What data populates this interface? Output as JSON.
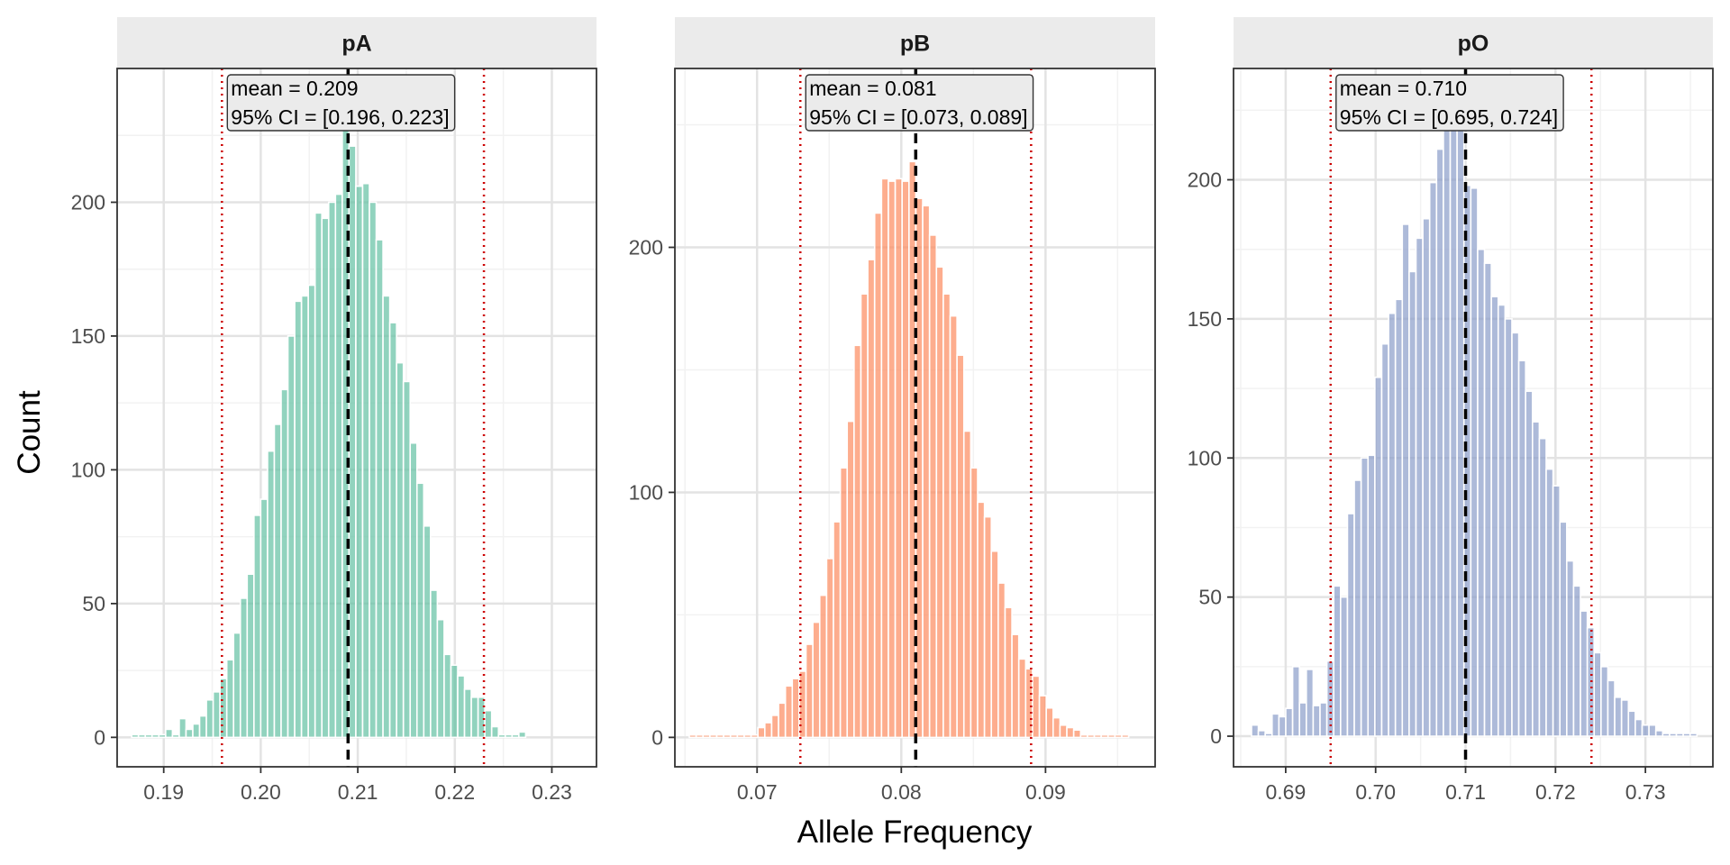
{
  "chart_data": {
    "type": "bar",
    "layout": "facet-row",
    "ylabel": "Count",
    "xlabel": "Allele Frequency",
    "colors": {
      "pA": "#66C2A5",
      "pB": "#FC8D62",
      "pO": "#8DA0CB",
      "mean_line": "#000000",
      "ci_line": "#CC0000"
    },
    "panels": [
      {
        "title": "pA",
        "xlim": [
          0.1852,
          0.2346
        ],
        "ylim": [
          -11,
          250
        ],
        "x_ticks": [
          0.19,
          0.2,
          0.21,
          0.22,
          0.23
        ],
        "x_tick_labels": [
          "0.19",
          "0.20",
          "0.21",
          "0.22",
          "0.23"
        ],
        "y_ticks": [
          0,
          50,
          100,
          150,
          200
        ],
        "y_tick_labels": [
          "0",
          "50",
          "100",
          "150",
          "200"
        ],
        "bin_start": 0.1867,
        "bin_width": 0.0007,
        "counts": [
          1,
          1,
          1,
          1,
          1,
          3,
          1,
          7,
          3,
          5,
          8,
          14,
          17,
          22,
          29,
          39,
          52,
          61,
          83,
          89,
          107,
          117,
          130,
          150,
          163,
          165,
          169,
          196,
          194,
          200,
          203,
          229,
          221,
          206,
          207,
          200,
          186,
          165,
          155,
          140,
          133,
          110,
          95,
          79,
          55,
          44,
          31,
          27,
          23,
          18,
          15,
          15,
          10,
          4,
          1,
          1,
          1,
          2
        ],
        "mean": 0.209,
        "ci": [
          0.196,
          0.223
        ],
        "annotation": {
          "mean_text": "mean = 0.209",
          "ci_text": "95% CI = [0.196, 0.223]"
        }
      },
      {
        "title": "pB",
        "xlim": [
          0.0643,
          0.0976
        ],
        "ylim": [
          -12,
          273
        ],
        "x_ticks": [
          0.07,
          0.08,
          0.09
        ],
        "x_tick_labels": [
          "0.07",
          "0.08",
          "0.09"
        ],
        "y_ticks": [
          0,
          100,
          200
        ],
        "y_tick_labels": [
          "0",
          "100",
          "200"
        ],
        "bin_start": 0.0653,
        "bin_width": 0.000476,
        "counts": [
          1,
          1,
          1,
          1,
          1,
          1,
          1,
          1,
          1,
          1,
          4,
          6,
          9,
          14,
          21,
          24,
          27,
          38,
          47,
          58,
          73,
          88,
          110,
          129,
          160,
          181,
          195,
          214,
          228,
          227,
          228,
          227,
          235,
          220,
          217,
          205,
          192,
          181,
          172,
          156,
          125,
          110,
          96,
          90,
          76,
          63,
          53,
          42,
          32,
          28,
          25,
          17,
          12,
          8,
          5,
          4,
          3,
          1,
          1,
          1,
          1,
          1,
          1,
          1
        ],
        "mean": 0.081,
        "ci": [
          0.073,
          0.089
        ],
        "annotation": {
          "mean_text": "mean = 0.081",
          "ci_text": "95% CI = [0.073, 0.089]"
        }
      },
      {
        "title": "pO",
        "xlim": [
          0.6842,
          0.7375
        ],
        "ylim": [
          -11,
          240
        ],
        "x_ticks": [
          0.69,
          0.7,
          0.71,
          0.72,
          0.73
        ],
        "x_tick_labels": [
          "0.69",
          "0.70",
          "0.71",
          "0.72",
          "0.73"
        ],
        "y_ticks": [
          0,
          50,
          100,
          150,
          200
        ],
        "y_tick_labels": [
          "0",
          "50",
          "100",
          "150",
          "200"
        ],
        "bin_start": 0.6862,
        "bin_width": 0.000762,
        "counts": [
          4,
          2,
          1,
          8,
          7,
          10,
          25,
          12,
          24,
          11,
          12,
          27,
          54,
          50,
          80,
          92,
          100,
          101,
          129,
          141,
          152,
          157,
          184,
          167,
          179,
          186,
          199,
          211,
          229,
          236,
          225,
          198,
          197,
          175,
          170,
          158,
          155,
          150,
          145,
          135,
          124,
          113,
          107,
          96,
          90,
          77,
          63,
          54,
          45,
          39,
          30,
          25,
          20,
          14,
          13,
          9,
          6,
          4,
          4,
          2,
          1,
          1,
          1,
          1,
          1
        ],
        "mean": 0.71,
        "ci": [
          0.695,
          0.724
        ],
        "annotation": {
          "mean_text": "mean = 0.710",
          "ci_text": "95% CI = [0.695, 0.724]"
        }
      }
    ]
  }
}
